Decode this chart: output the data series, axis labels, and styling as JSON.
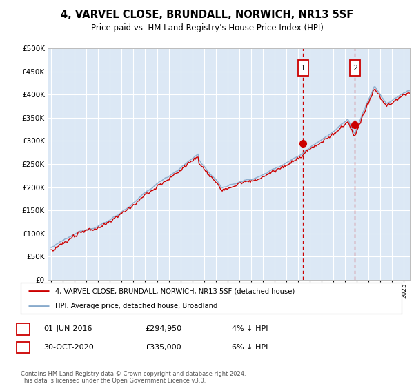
{
  "title": "4, VARVEL CLOSE, BRUNDALL, NORWICH, NR13 5SF",
  "subtitle": "Price paid vs. HM Land Registry's House Price Index (HPI)",
  "ytick_values": [
    0,
    50000,
    100000,
    150000,
    200000,
    250000,
    300000,
    350000,
    400000,
    450000,
    500000
  ],
  "ylim": [
    0,
    500000
  ],
  "sale1_date_str": "01-JUN-2016",
  "sale1_price": 294950,
  "sale1_hpi_diff": "4% ↓ HPI",
  "sale1_x": 2016.42,
  "sale2_date_str": "30-OCT-2020",
  "sale2_price": 335000,
  "sale2_hpi_diff": "6% ↓ HPI",
  "sale2_x": 2020.83,
  "legend_line1": "4, VARVEL CLOSE, BRUNDALL, NORWICH, NR13 5SF (detached house)",
  "legend_line2": "HPI: Average price, detached house, Broadland",
  "footer": "Contains HM Land Registry data © Crown copyright and database right 2024.\nThis data is licensed under the Open Government Licence v3.0.",
  "line_color_red": "#cc0000",
  "line_color_blue": "#88aacc",
  "bg_color": "#dce8f5",
  "grid_color": "#ffffff",
  "box_color": "#cc0000",
  "xlim_left": 1994.7,
  "xlim_right": 2025.5
}
